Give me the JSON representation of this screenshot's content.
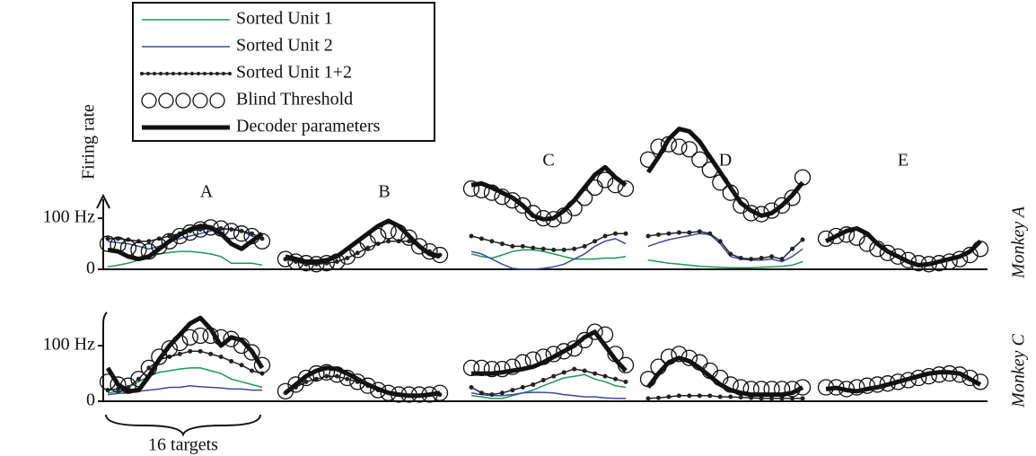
{
  "chart_data": {
    "type": "line",
    "ylabel": "Firing rate",
    "xlabel": "16 targets",
    "panels": [
      "A",
      "B",
      "C",
      "D",
      "E"
    ],
    "legend": [
      {
        "name": "Sorted Unit 1",
        "color": "#1a9a50",
        "style": "thin"
      },
      {
        "name": "Sorted Unit 2",
        "color": "#3a4aa0",
        "style": "thin"
      },
      {
        "name": "Sorted Unit 1+2",
        "color": "#222222",
        "style": "dotted"
      },
      {
        "name": "Blind Threshold",
        "color": "#111111",
        "style": "circles"
      },
      {
        "name": "Decoder parameters",
        "color": "#111111",
        "style": "thick"
      }
    ],
    "rows": [
      {
        "name": "Monkey A",
        "ylim": [
          0,
          320
        ],
        "yticks": [
          0,
          {
            "value": 100,
            "label": "100 Hz"
          }
        ],
        "panels": [
          {
            "values": [
              [
                5,
                8,
                12,
                18,
                25,
                30,
                33,
                35,
                35,
                33,
                30,
                25,
                12,
                12,
                12,
                8
              ],
              [
                55,
                52,
                50,
                45,
                40,
                45,
                55,
                60,
                65,
                70,
                75,
                78,
                80,
                75,
                65,
                60
              ],
              [
                60,
                60,
                58,
                55,
                55,
                60,
                65,
                70,
                75,
                78,
                80,
                80,
                78,
                75,
                70,
                60
              ],
              [
                50,
                48,
                42,
                38,
                35,
                45,
                55,
                65,
                72,
                78,
                82,
                80,
                75,
                70,
                65,
                55
              ],
              [
                38,
                35,
                25,
                20,
                25,
                40,
                55,
                68,
                78,
                85,
                82,
                70,
                50,
                40,
                55,
                70
              ]
            ]
          },
          {
            "values": [
              null,
              null,
              [
                20,
                15,
                10,
                10,
                12,
                15,
                22,
                32,
                42,
                50,
                55,
                55,
                55,
                45,
                35,
                28
              ],
              [
                20,
                15,
                12,
                10,
                12,
                15,
                25,
                38,
                52,
                65,
                75,
                72,
                62,
                45,
                35,
                28
              ],
              [
                25,
                20,
                15,
                15,
                18,
                25,
                40,
                55,
                70,
                85,
                95,
                85,
                65,
                45,
                30,
                25
              ]
            ]
          },
          {
            "values": [
              [
                30,
                25,
                22,
                28,
                35,
                38,
                38,
                35,
                30,
                25,
                20,
                20,
                20,
                22,
                22,
                25
              ],
              [
                35,
                30,
                20,
                10,
                2,
                0,
                0,
                2,
                5,
                10,
                20,
                30,
                45,
                55,
                60,
                50
              ],
              [
                65,
                60,
                55,
                50,
                45,
                45,
                42,
                40,
                38,
                38,
                40,
                45,
                55,
                65,
                70,
                70
              ],
              [
                158,
                155,
                150,
                142,
                135,
                125,
                110,
                100,
                98,
                105,
                120,
                140,
                160,
                175,
                165,
                158
              ],
              [
                165,
                168,
                160,
                150,
                140,
                125,
                105,
                98,
                100,
                115,
                135,
                160,
                185,
                200,
                180,
                165
              ]
            ]
          },
          {
            "values": [
              [
                18,
                15,
                12,
                10,
                8,
                6,
                5,
                4,
                3,
                3,
                3,
                4,
                5,
                6,
                8,
                15
              ],
              [
                45,
                52,
                58,
                62,
                66,
                70,
                68,
                50,
                25,
                20,
                18,
                18,
                20,
                15,
                25,
                40
              ],
              [
                65,
                68,
                70,
                72,
                72,
                74,
                70,
                55,
                30,
                22,
                20,
                22,
                25,
                20,
                40,
                58
              ],
              [
                215,
                240,
                245,
                240,
                235,
                215,
                195,
                170,
                150,
                125,
                110,
                108,
                115,
                125,
                140,
                180
              ],
              [
                190,
                220,
                255,
                275,
                270,
                250,
                220,
                190,
                160,
                130,
                115,
                105,
                110,
                125,
                145,
                170
              ]
            ]
          },
          {
            "values": [
              null,
              null,
              null,
              [
                60,
                65,
                68,
                62,
                50,
                40,
                32,
                25,
                18,
                12,
                10,
                12,
                15,
                20,
                28,
                40
              ],
              [
                55,
                65,
                75,
                80,
                70,
                50,
                35,
                25,
                15,
                8,
                10,
                15,
                20,
                25,
                35,
                55
              ]
            ]
          }
        ]
      },
      {
        "name": "Monkey C",
        "ylim": [
          0,
          160
        ],
        "yticks": [
          0,
          {
            "value": 100,
            "label": "100 Hz"
          }
        ],
        "panels": [
          {
            "values": [
              [
                15,
                18,
                25,
                35,
                45,
                52,
                55,
                58,
                60,
                60,
                55,
                50,
                40,
                35,
                30,
                25
              ],
              [
                12,
                14,
                15,
                18,
                20,
                22,
                25,
                25,
                28,
                26,
                25,
                24,
                22,
                22,
                20,
                20
              ],
              [
                20,
                22,
                25,
                40,
                60,
                75,
                80,
                85,
                90,
                90,
                85,
                80,
                72,
                65,
                55,
                50
              ],
              [
                35,
                30,
                28,
                40,
                60,
                80,
                95,
                105,
                115,
                118,
                118,
                115,
                112,
                100,
                88,
                65
              ],
              [
                60,
                30,
                18,
                20,
                45,
                75,
                100,
                120,
                140,
                150,
                130,
                100,
                115,
                110,
                90,
                60
              ]
            ]
          },
          {
            "values": [
              null,
              null,
              [
                15,
                25,
                35,
                40,
                45,
                45,
                40,
                35,
                28,
                20,
                15,
                12,
                10,
                10,
                12,
                12
              ],
              [
                18,
                30,
                42,
                50,
                52,
                48,
                42,
                35,
                28,
                20,
                15,
                12,
                12,
                12,
                12,
                15
              ],
              [
                15,
                30,
                45,
                55,
                60,
                58,
                50,
                40,
                30,
                22,
                15,
                12,
                10,
                10,
                12,
                15
              ]
            ]
          },
          {
            "values": [
              [
                10,
                8,
                5,
                5,
                10,
                15,
                20,
                28,
                35,
                42,
                45,
                48,
                40,
                35,
                28,
                25
              ],
              [
                15,
                12,
                10,
                10,
                12,
                15,
                16,
                16,
                15,
                12,
                10,
                8,
                8,
                6,
                5,
                5
              ],
              [
                25,
                15,
                12,
                15,
                20,
                25,
                30,
                38,
                45,
                52,
                58,
                55,
                50,
                45,
                40,
                35
              ],
              [
                60,
                60,
                58,
                58,
                62,
                70,
                75,
                80,
                85,
                90,
                95,
                110,
                125,
                120,
                85,
                65
              ],
              [
                50,
                50,
                50,
                52,
                55,
                58,
                62,
                70,
                80,
                90,
                100,
                115,
                125,
                100,
                75,
                55
              ]
            ]
          },
          {
            "values": [
              null,
              null,
              [
                5,
                6,
                8,
                10,
                10,
                10,
                10,
                8,
                8,
                7,
                6,
                5,
                5,
                5,
                5,
                5
              ],
              [
                40,
                62,
                80,
                85,
                78,
                70,
                55,
                42,
                30,
                25,
                22,
                22,
                22,
                22,
                22,
                25
              ],
              [
                25,
                50,
                70,
                78,
                72,
                60,
                45,
                30,
                20,
                15,
                12,
                12,
                12,
                12,
                15,
                25
              ]
            ]
          },
          {
            "values": [
              null,
              null,
              null,
              [
                25,
                25,
                22,
                25,
                28,
                30,
                32,
                35,
                38,
                42,
                45,
                48,
                50,
                48,
                42,
                35
              ],
              [
                22,
                24,
                20,
                18,
                22,
                25,
                30,
                35,
                40,
                45,
                50,
                52,
                52,
                50,
                40,
                30
              ]
            ]
          }
        ]
      }
    ]
  }
}
